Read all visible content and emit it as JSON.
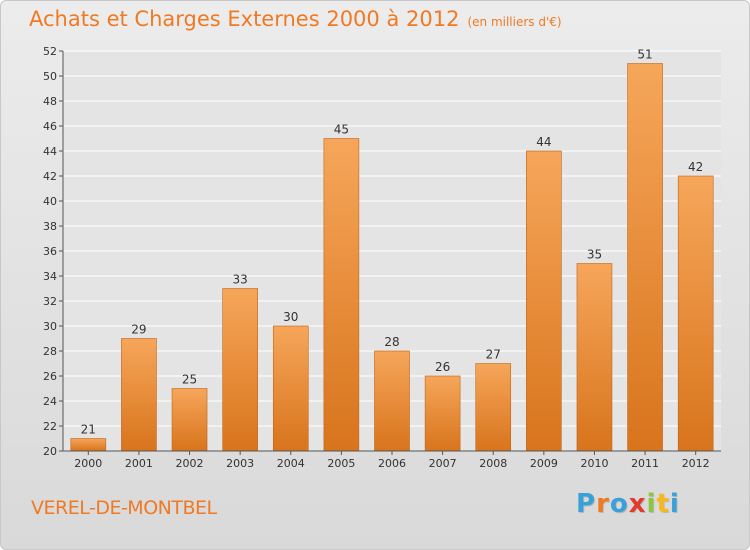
{
  "header": {
    "title": "Achats et Charges Externes 2000 à 2012",
    "unit": "(en milliers d'€)"
  },
  "footer": {
    "commune": "VEREL-DE-MONTBEL",
    "logo_text": "Proxiti"
  },
  "colors": {
    "accent": "#f07a24",
    "bar_top": "#f6a65a",
    "bar_bottom": "#d8741c",
    "grid": "#ffffff",
    "axis": "#555555"
  },
  "chart_data": {
    "type": "bar",
    "title": "Achats et Charges Externes 2000 à 2012",
    "subtitle": "(en milliers d'€)",
    "xlabel": "",
    "ylabel": "",
    "categories": [
      "2000",
      "2001",
      "2002",
      "2003",
      "2004",
      "2005",
      "2006",
      "2007",
      "2008",
      "2009",
      "2010",
      "2011",
      "2012"
    ],
    "values": [
      21,
      29,
      25,
      33,
      30,
      45,
      28,
      26,
      27,
      44,
      35,
      51,
      42
    ],
    "value_labels": [
      "21",
      "29",
      "25",
      "33",
      "30",
      "45",
      "28",
      "26",
      "27",
      "44",
      "35",
      "51",
      "42"
    ],
    "ylim": [
      20,
      52
    ],
    "yticks": [
      "20",
      "22",
      "24",
      "26",
      "28",
      "30",
      "32",
      "34",
      "36",
      "38",
      "40",
      "42",
      "44",
      "46",
      "48",
      "50",
      "52"
    ],
    "grid": true,
    "legend": "none"
  }
}
